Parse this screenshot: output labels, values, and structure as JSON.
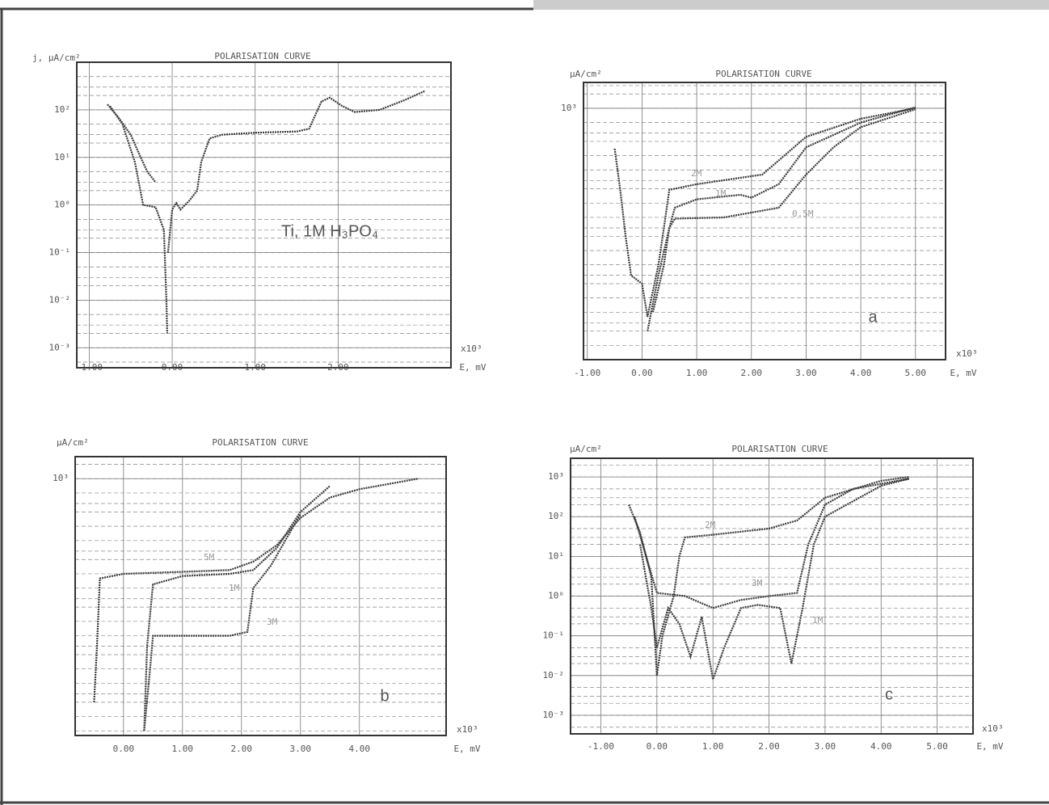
{
  "chart_data": [
    {
      "type": "line",
      "title": "POLARISATION CURVE",
      "y_label": "j, μA/cm²",
      "x_label": "E, mV",
      "x_multiplier": "x10³",
      "annotation": "Ti, 1M H₃PO₄",
      "log_y": true,
      "grid": true,
      "color": "#3a3a3a",
      "xlim": [
        -1.15,
        3.36
      ],
      "ylim": [
        0.00038,
        1000
      ],
      "xticks": [
        {
          "value": -1,
          "label": "-1.00"
        },
        {
          "value": 0,
          "label": "0.00"
        },
        {
          "value": 1,
          "label": "1.00"
        },
        {
          "value": 2,
          "label": "2.00"
        }
      ],
      "yticks": [
        {
          "value": 0.001,
          "label": "10⁻³"
        },
        {
          "value": 0.01,
          "label": "10⁻²"
        },
        {
          "value": 0.1,
          "label": "10⁻¹"
        },
        {
          "value": 1,
          "label": "10⁰"
        },
        {
          "value": 10,
          "label": "10¹"
        },
        {
          "value": 100,
          "label": "10²"
        }
      ],
      "series": [
        {
          "x": [
            -0.78,
            -0.65,
            -0.5,
            -0.4,
            -0.3,
            -0.2,
            null,
            -0.75,
            -0.6,
            -0.45,
            -0.35,
            -0.2,
            -0.1,
            -0.07,
            -0.06,
            null,
            -0.05,
            0,
            0.05,
            0.1,
            0.2,
            0.3,
            0.35,
            0.45,
            0.6,
            1,
            1.5,
            1.65,
            1.8,
            1.9,
            2.05,
            2.2,
            2.5,
            2.8,
            3.05
          ],
          "values": [
            130,
            70,
            30,
            12,
            5,
            3,
            null,
            120,
            50,
            8,
            1,
            0.9,
            0.3,
            0.01,
            0.002,
            null,
            0.1,
            0.8,
            1.1,
            0.8,
            1.2,
            2,
            8,
            25,
            30,
            33,
            35,
            40,
            150,
            180,
            120,
            90,
            100,
            160,
            250
          ]
        }
      ]
    },
    {
      "type": "line",
      "title": "POLARISATION CURVE",
      "y_label": "μA/cm²",
      "x_label": "E, mV",
      "x_multiplier": "x10³",
      "annotation": "a",
      "log_y": true,
      "grid": true,
      "color": "#3a3a3a",
      "xlim": [
        -1.07,
        5.55
      ],
      "ylim": [
        0.005,
        3500
      ],
      "xticks": [
        {
          "value": -1,
          "label": "-1.00"
        },
        {
          "value": 0,
          "label": "0.00"
        },
        {
          "value": 1,
          "label": "1.00"
        },
        {
          "value": 2,
          "label": "2.00"
        },
        {
          "value": 3,
          "label": "3.00"
        },
        {
          "value": 4,
          "label": "4.00"
        },
        {
          "value": 5,
          "label": "5.00"
        }
      ],
      "yticks": [
        {
          "value": 1000,
          "label": "10³"
        }
      ],
      "series": [
        {
          "name": "2M",
          "x": [
            -0.5,
            -0.4,
            -0.3,
            -0.2,
            0,
            0.1,
            0.3,
            0.4,
            0.5,
            1,
            2.2,
            3,
            4,
            5
          ],
          "values": [
            140,
            20,
            2,
            0.3,
            0.2,
            0.04,
            0.5,
            3,
            19,
            25,
            40,
            250,
            600,
            1000
          ]
        },
        {
          "name": "1M",
          "x": [
            0.1,
            0.3,
            0.5,
            0.6,
            1,
            1.8,
            2,
            2.5,
            3,
            4,
            5
          ],
          "values": [
            0.02,
            0.3,
            3,
            8,
            12,
            15,
            13,
            25,
            150,
            500,
            1050
          ]
        },
        {
          "name": "0.5M",
          "x": [
            0.2,
            0.4,
            0.5,
            0.6,
            1.5,
            2.5,
            3,
            3.5,
            4,
            5
          ],
          "values": [
            0.05,
            0.5,
            3,
            4.7,
            5,
            8,
            40,
            150,
            400,
            950
          ]
        }
      ]
    },
    {
      "type": "line",
      "title": "POLARISATION CURVE",
      "y_label": "μA/cm²",
      "x_label": "E, mV",
      "x_multiplier": "x10³",
      "annotation": "b",
      "log_y": true,
      "grid": true,
      "color": "#3a3a3a",
      "xlim": [
        -0.82,
        5.47
      ],
      "ylim": [
        0.004,
        2900
      ],
      "xticks": [
        {
          "value": 0,
          "label": "0.00"
        },
        {
          "value": 1,
          "label": "1.00"
        },
        {
          "value": 2,
          "label": "2.00"
        },
        {
          "value": 3,
          "label": "3.00"
        },
        {
          "value": 4,
          "label": "4.00"
        }
      ],
      "yticks": [
        {
          "value": 1000,
          "label": "10³"
        }
      ],
      "series": [
        {
          "name": "5M",
          "x": [
            -0.5,
            -0.45,
            -0.4,
            0,
            1,
            1.8,
            2.2,
            2.6,
            3,
            3.5,
            4,
            5
          ],
          "values": [
            0.02,
            0.3,
            8,
            10,
            11,
            12,
            18,
            40,
            150,
            400,
            600,
            1000
          ]
        },
        {
          "name": "1M",
          "x": [
            0.35,
            0.4,
            0.5,
            1,
            1.8,
            2.2,
            2.6,
            3,
            3.5
          ],
          "values": [
            0.005,
            0.3,
            6,
            9,
            10,
            12,
            35,
            200,
            700
          ]
        },
        {
          "name": "3M",
          "x": [
            0.35,
            0.45,
            0.5,
            1,
            1.8,
            2.1,
            2.2,
            2.5,
            3
          ],
          "values": [
            0.005,
            0.1,
            0.5,
            0.5,
            0.5,
            0.6,
            5,
            15,
            180
          ]
        }
      ]
    },
    {
      "type": "line",
      "title": "POLARISATION CURVE",
      "y_label": "μA/cm²",
      "x_label": "E, mV",
      "x_multiplier": "x10³",
      "annotation": "c",
      "log_y": true,
      "grid": true,
      "color": "#3a3a3a",
      "xlim": [
        -1.54,
        5.64
      ],
      "ylim": [
        0.00034,
        2950
      ],
      "xticks": [
        {
          "value": -1,
          "label": "-1.00"
        },
        {
          "value": 0,
          "label": "0.00"
        },
        {
          "value": 1,
          "label": "1.00"
        },
        {
          "value": 2,
          "label": "2.00"
        },
        {
          "value": 3,
          "label": "3.00"
        },
        {
          "value": 4,
          "label": "4.00"
        },
        {
          "value": 5,
          "label": "5.00"
        }
      ],
      "yticks": [
        {
          "value": 0.001,
          "label": "10⁻³"
        },
        {
          "value": 0.01,
          "label": "10⁻²"
        },
        {
          "value": 0.1,
          "label": "10⁻¹"
        },
        {
          "value": 1,
          "label": "10⁰"
        },
        {
          "value": 10,
          "label": "10¹"
        },
        {
          "value": 100,
          "label": "10²"
        },
        {
          "value": 1000,
          "label": "10³"
        }
      ],
      "series": [
        {
          "name": "2M",
          "x": [
            -0.5,
            -0.3,
            -0.1,
            0,
            0.1,
            0.3,
            0.4,
            0.5,
            1,
            2,
            2.5,
            3,
            4,
            4.5
          ],
          "values": [
            200,
            40,
            3,
            0.01,
            0.1,
            1,
            10,
            30,
            35,
            50,
            80,
            300,
            800,
            1000
          ]
        },
        {
          "name": "3M",
          "x": [
            -0.4,
            0,
            0.5,
            1,
            1.5,
            2,
            2.5,
            2.7,
            3,
            3.5,
            4.5
          ],
          "values": [
            100,
            1.2,
            1,
            0.5,
            0.8,
            1,
            1.2,
            20,
            200,
            500,
            900
          ]
        },
        {
          "name": "1M",
          "x": [
            -0.3,
            -0.1,
            0,
            0.2,
            0.4,
            0.6,
            0.8,
            1,
            1.2,
            1.5,
            1.8,
            2.2,
            2.4,
            2.6,
            2.8,
            3,
            4,
            4.5
          ],
          "values": [
            20,
            0.5,
            0.05,
            0.5,
            0.2,
            0.03,
            0.3,
            0.008,
            0.05,
            0.5,
            0.6,
            0.5,
            0.02,
            0.5,
            20,
            100,
            600,
            900
          ]
        }
      ]
    }
  ]
}
